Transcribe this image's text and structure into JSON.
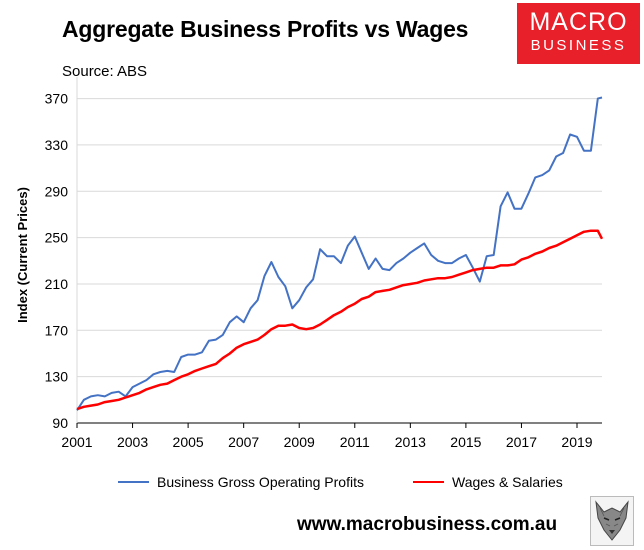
{
  "header": {
    "title": "Aggregate Business Profits vs Wages",
    "source": "Source: ABS"
  },
  "logo": {
    "line1": "MACRO",
    "line2": "BUSINESS",
    "color": "#e8202a"
  },
  "footer": {
    "website": "www.macrobusiness.com.au",
    "emblem": "wolf-emblem-icon"
  },
  "chart_data": {
    "type": "line",
    "title": "Aggregate Business Profits vs Wages",
    "ylabel": "Index (Current Prices)",
    "xlabel": "",
    "xlim": [
      2001.0,
      2019.9
    ],
    "ylim": [
      90,
      380
    ],
    "yticks": [
      90,
      130,
      170,
      210,
      250,
      290,
      330,
      370
    ],
    "xticks": [
      2001,
      2003,
      2005,
      2007,
      2009,
      2011,
      2013,
      2015,
      2017,
      2019
    ],
    "grid": "horizontal",
    "legend": "bottom",
    "series": [
      {
        "name": "Business Gross Operating Profits",
        "color": "#4472c4",
        "x": [
          2001.0,
          2001.25,
          2001.5,
          2001.75,
          2002.0,
          2002.25,
          2002.5,
          2002.75,
          2003.0,
          2003.25,
          2003.5,
          2003.75,
          2004.0,
          2004.25,
          2004.5,
          2004.75,
          2005.0,
          2005.25,
          2005.5,
          2005.75,
          2006.0,
          2006.25,
          2006.5,
          2006.75,
          2007.0,
          2007.25,
          2007.5,
          2007.75,
          2008.0,
          2008.25,
          2008.5,
          2008.75,
          2009.0,
          2009.25,
          2009.5,
          2009.75,
          2010.0,
          2010.25,
          2010.5,
          2010.75,
          2011.0,
          2011.25,
          2011.5,
          2011.75,
          2012.0,
          2012.25,
          2012.5,
          2012.75,
          2013.0,
          2013.25,
          2013.5,
          2013.75,
          2014.0,
          2014.25,
          2014.5,
          2014.75,
          2015.0,
          2015.25,
          2015.5,
          2015.75,
          2016.0,
          2016.25,
          2016.5,
          2016.75,
          2017.0,
          2017.25,
          2017.5,
          2017.75,
          2018.0,
          2018.25,
          2018.5,
          2018.75,
          2019.0,
          2019.25,
          2019.5,
          2019.75,
          2019.9
        ],
        "values": [
          101,
          110,
          113,
          114,
          113,
          116,
          117,
          113,
          121,
          124,
          127,
          132,
          134,
          135,
          134,
          147,
          149,
          149,
          151,
          161,
          162,
          166,
          177,
          182,
          177,
          189,
          196,
          217,
          229,
          216,
          208,
          189,
          196,
          207,
          214,
          240,
          234,
          234,
          228,
          243,
          251,
          237,
          223,
          232,
          223,
          222,
          228,
          232,
          237,
          241,
          245,
          235,
          230,
          228,
          228,
          232,
          235,
          224,
          212,
          234,
          235,
          277,
          289,
          275,
          275,
          288,
          302,
          304,
          308,
          320,
          323,
          339,
          337,
          325,
          325,
          370,
          371
        ]
      },
      {
        "name": "Wages & Salaries",
        "color": "#ff0000",
        "x": [
          2001.0,
          2001.25,
          2001.5,
          2001.75,
          2002.0,
          2002.25,
          2002.5,
          2002.75,
          2003.0,
          2003.25,
          2003.5,
          2003.75,
          2004.0,
          2004.25,
          2004.5,
          2004.75,
          2005.0,
          2005.25,
          2005.5,
          2005.75,
          2006.0,
          2006.25,
          2006.5,
          2006.75,
          2007.0,
          2007.25,
          2007.5,
          2007.75,
          2008.0,
          2008.25,
          2008.5,
          2008.75,
          2009.0,
          2009.25,
          2009.5,
          2009.75,
          2010.0,
          2010.25,
          2010.5,
          2010.75,
          2011.0,
          2011.25,
          2011.5,
          2011.75,
          2012.0,
          2012.25,
          2012.5,
          2012.75,
          2013.0,
          2013.25,
          2013.5,
          2013.75,
          2014.0,
          2014.25,
          2014.5,
          2014.75,
          2015.0,
          2015.25,
          2015.5,
          2015.75,
          2016.0,
          2016.25,
          2016.5,
          2016.75,
          2017.0,
          2017.25,
          2017.5,
          2017.75,
          2018.0,
          2018.25,
          2018.5,
          2018.75,
          2019.0,
          2019.25,
          2019.5,
          2019.75,
          2019.9
        ],
        "values": [
          102,
          104,
          105,
          106,
          108,
          109,
          110,
          112,
          114,
          116,
          119,
          121,
          123,
          124,
          127,
          130,
          132,
          135,
          137,
          139,
          141,
          146,
          150,
          155,
          158,
          160,
          162,
          166,
          171,
          174,
          174,
          175,
          172,
          171,
          172,
          175,
          179,
          183,
          186,
          190,
          193,
          197,
          199,
          203,
          204,
          205,
          207,
          209,
          210,
          211,
          213,
          214,
          215,
          215,
          216,
          218,
          220,
          222,
          223,
          224,
          224,
          226,
          226,
          227,
          231,
          233,
          236,
          238,
          241,
          243,
          246,
          249,
          252,
          255,
          256,
          256,
          249
        ]
      }
    ]
  }
}
